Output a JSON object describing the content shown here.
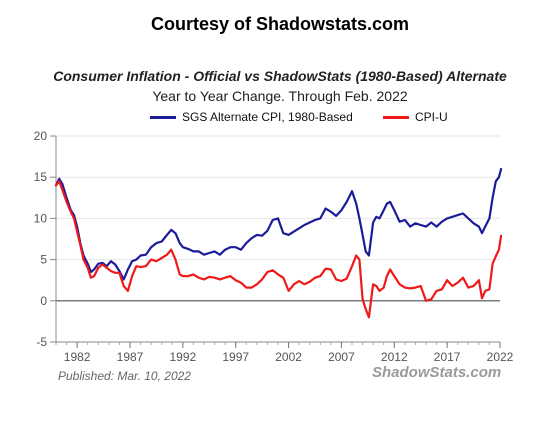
{
  "header": {
    "courtesy": "Courtesy of Shadowstats.com"
  },
  "footer": {
    "published": "Published: Mar. 10, 2022",
    "watermark": "ShadowStats.com"
  },
  "chart_data": {
    "type": "line",
    "title": "Consumer Inflation - Official vs ShadowStats (1980-Based) Alternate",
    "subtitle": "Year to Year Change. Through Feb. 2022",
    "xlabel": "",
    "ylabel": "",
    "xlim": [
      1980,
      2022
    ],
    "ylim": [
      -5,
      20
    ],
    "yticks": [
      -5,
      0,
      5,
      10,
      15,
      20
    ],
    "xticks": [
      1982,
      1987,
      1992,
      1997,
      2002,
      2007,
      2012,
      2017,
      2022
    ],
    "grid": "horizontal",
    "legend_position": "top",
    "series": [
      {
        "name": "SGS Alternate CPI, 1980-Based",
        "color": "#1c1c9a",
        "x": [
          1980.0,
          1980.3,
          1980.6,
          1981.0,
          1981.4,
          1981.7,
          1982.0,
          1982.3,
          1982.6,
          1983.0,
          1983.3,
          1983.6,
          1984.0,
          1984.4,
          1984.8,
          1985.2,
          1985.6,
          1986.0,
          1986.4,
          1986.8,
          1987.2,
          1987.6,
          1988.0,
          1988.5,
          1989.0,
          1989.5,
          1990.0,
          1990.5,
          1990.9,
          1991.3,
          1991.7,
          1992.0,
          1992.5,
          1993.0,
          1993.5,
          1994.0,
          1994.5,
          1995.0,
          1995.5,
          1996.0,
          1996.5,
          1997.0,
          1997.5,
          1998.0,
          1998.5,
          1999.0,
          1999.5,
          2000.0,
          2000.5,
          2001.0,
          2001.5,
          2002.0,
          2002.5,
          2003.0,
          2003.5,
          2004.0,
          2004.5,
          2005.0,
          2005.5,
          2006.0,
          2006.5,
          2007.0,
          2007.5,
          2008.0,
          2008.4,
          2008.7,
          2009.0,
          2009.3,
          2009.6,
          2010.0,
          2010.3,
          2010.6,
          2011.0,
          2011.3,
          2011.6,
          2012.0,
          2012.5,
          2013.0,
          2013.5,
          2014.0,
          2014.5,
          2015.0,
          2015.5,
          2016.0,
          2016.5,
          2017.0,
          2017.5,
          2018.0,
          2018.5,
          2019.0,
          2019.5,
          2020.0,
          2020.3,
          2020.6,
          2021.0,
          2021.3,
          2021.6,
          2021.9,
          2022.1
        ],
        "values": [
          14.0,
          14.8,
          14.2,
          12.5,
          11.0,
          10.4,
          9.0,
          7.0,
          5.5,
          4.5,
          3.5,
          3.8,
          4.5,
          4.6,
          4.2,
          4.8,
          4.4,
          3.6,
          2.6,
          3.8,
          4.8,
          5.0,
          5.5,
          5.6,
          6.5,
          7.0,
          7.2,
          8.0,
          8.6,
          8.2,
          7.0,
          6.5,
          6.3,
          6.0,
          6.0,
          5.6,
          5.8,
          6.0,
          5.6,
          6.2,
          6.5,
          6.5,
          6.2,
          7.0,
          7.6,
          8.0,
          7.9,
          8.5,
          9.8,
          10.0,
          8.2,
          8.0,
          8.4,
          8.8,
          9.2,
          9.5,
          9.8,
          10.0,
          11.2,
          10.8,
          10.3,
          11.0,
          12.0,
          13.3,
          11.8,
          10.0,
          8.0,
          6.0,
          5.5,
          9.5,
          10.2,
          10.0,
          11.0,
          11.8,
          12.0,
          11.0,
          9.6,
          9.8,
          9.0,
          9.4,
          9.2,
          9.0,
          9.5,
          9.0,
          9.6,
          10.0,
          10.2,
          10.4,
          10.6,
          10.0,
          9.4,
          9.0,
          8.2,
          9.0,
          10.0,
          12.5,
          14.5,
          15.0,
          16.0
        ]
      },
      {
        "name": "CPI-U",
        "color": "#ee1a1a",
        "x": [
          1980.0,
          1980.3,
          1980.6,
          1981.0,
          1981.4,
          1981.7,
          1982.0,
          1982.3,
          1982.6,
          1983.0,
          1983.3,
          1983.6,
          1984.0,
          1984.4,
          1984.8,
          1985.2,
          1985.6,
          1986.0,
          1986.4,
          1986.8,
          1987.2,
          1987.6,
          1988.0,
          1988.5,
          1989.0,
          1989.5,
          1990.0,
          1990.5,
          1990.9,
          1991.3,
          1991.7,
          1992.0,
          1992.5,
          1993.0,
          1993.5,
          1994.0,
          1994.5,
          1995.0,
          1995.5,
          1996.0,
          1996.5,
          1997.0,
          1997.5,
          1998.0,
          1998.5,
          1999.0,
          1999.5,
          2000.0,
          2000.5,
          2001.0,
          2001.5,
          2002.0,
          2002.5,
          2003.0,
          2003.5,
          2004.0,
          2004.5,
          2005.0,
          2005.5,
          2006.0,
          2006.5,
          2007.0,
          2007.5,
          2008.0,
          2008.4,
          2008.7,
          2009.0,
          2009.3,
          2009.6,
          2010.0,
          2010.3,
          2010.6,
          2011.0,
          2011.3,
          2011.6,
          2012.0,
          2012.5,
          2013.0,
          2013.5,
          2014.0,
          2014.5,
          2015.0,
          2015.5,
          2016.0,
          2016.5,
          2017.0,
          2017.5,
          2018.0,
          2018.5,
          2019.0,
          2019.5,
          2020.0,
          2020.3,
          2020.6,
          2021.0,
          2021.3,
          2021.6,
          2021.9,
          2022.1
        ],
        "values": [
          14.0,
          14.5,
          13.5,
          12.0,
          10.8,
          10.0,
          8.4,
          6.8,
          5.0,
          4.0,
          2.8,
          3.0,
          4.0,
          4.4,
          4.0,
          3.6,
          3.4,
          3.4,
          1.8,
          1.2,
          3.0,
          4.2,
          4.1,
          4.2,
          5.0,
          4.8,
          5.2,
          5.6,
          6.2,
          5.0,
          3.2,
          3.0,
          3.0,
          3.2,
          2.8,
          2.6,
          2.9,
          2.8,
          2.6,
          2.8,
          3.0,
          2.5,
          2.2,
          1.6,
          1.6,
          2.0,
          2.6,
          3.5,
          3.7,
          3.2,
          2.8,
          1.2,
          2.0,
          2.4,
          2.0,
          2.3,
          2.8,
          3.0,
          3.9,
          3.8,
          2.6,
          2.4,
          2.7,
          4.2,
          5.5,
          5.0,
          0.2,
          -1.0,
          -2.0,
          2.0,
          1.8,
          1.2,
          1.6,
          3.0,
          3.8,
          3.0,
          2.0,
          1.6,
          1.5,
          1.6,
          1.8,
          0.0,
          0.2,
          1.2,
          1.4,
          2.5,
          1.8,
          2.2,
          2.8,
          1.6,
          1.8,
          2.5,
          0.3,
          1.2,
          1.4,
          4.5,
          5.4,
          6.2,
          7.9
        ]
      }
    ]
  }
}
